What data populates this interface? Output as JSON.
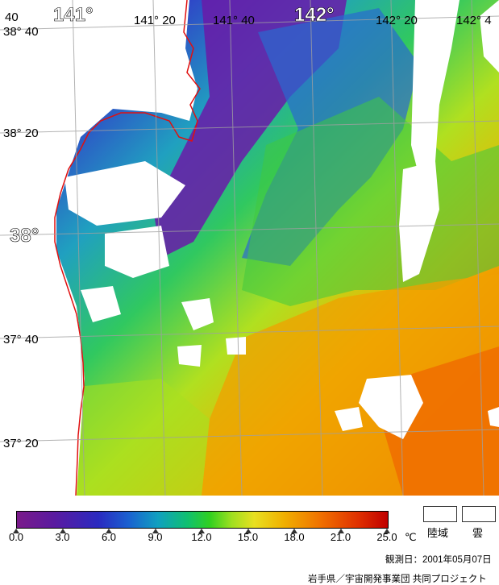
{
  "map": {
    "lon_labels": [
      "141°",
      "141° 20",
      "141° 40",
      "142°",
      "142° 20",
      "142° 4"
    ],
    "lat_labels": [
      "38° 40",
      "38° 20",
      "38°",
      "37° 40",
      "37° 20"
    ],
    "corner_label": "40"
  },
  "colorbar": {
    "ticks": [
      "0.0",
      "3.0",
      "6.0",
      "9.0",
      "12.0",
      "15.0",
      "18.0",
      "21.0",
      "25.0"
    ],
    "unit": "℃"
  },
  "legend": {
    "land": "陸域",
    "cloud": "雲"
  },
  "footer": {
    "date": "観測日：2001年05月07日",
    "credit": "岩手県／宇宙開発事業団  共同プロジェクト"
  },
  "colors": {
    "coastline": "#e01010",
    "grid": "#a0a0a0",
    "land_cloud": "#ffffff"
  }
}
